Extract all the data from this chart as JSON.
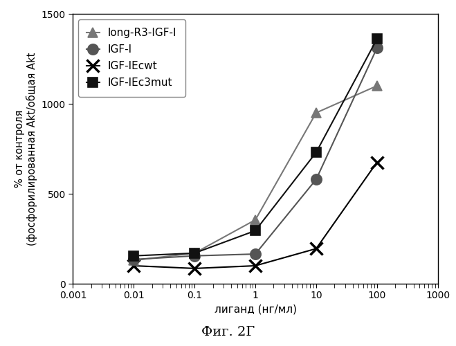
{
  "series": [
    {
      "label": "long-R3-IGF-I",
      "x": [
        0.01,
        0.1,
        1,
        10,
        100
      ],
      "y": [
        130,
        170,
        355,
        950,
        1100
      ],
      "marker": "^",
      "color": "#777777",
      "linestyle": "-",
      "markersize": 10,
      "zorder": 3,
      "markerfacecolor": "#777777"
    },
    {
      "label": "IGF-I",
      "x": [
        0.01,
        0.1,
        1,
        10,
        100
      ],
      "y": [
        135,
        155,
        165,
        580,
        1310
      ],
      "marker": "o",
      "color": "#555555",
      "linestyle": "-",
      "markersize": 11,
      "zorder": 4,
      "markerfacecolor": "#555555"
    },
    {
      "label": "IGF-IEcwt",
      "x": [
        0.01,
        0.1,
        1,
        10,
        100
      ],
      "y": [
        100,
        85,
        100,
        195,
        675
      ],
      "marker": "x",
      "color": "#000000",
      "linestyle": "-",
      "markersize": 13,
      "zorder": 2,
      "markerfacecolor": "#000000"
    },
    {
      "label": "IGF-IEc3mut",
      "x": [
        0.01,
        0.1,
        1,
        10,
        100
      ],
      "y": [
        155,
        170,
        295,
        730,
        1360
      ],
      "marker": "s",
      "color": "#111111",
      "linestyle": "-",
      "markersize": 10,
      "zorder": 5,
      "markerfacecolor": "#111111"
    }
  ],
  "xlabel": "лиганд (нг/мл)",
  "ylabel_line1": "% от контроля",
  "ylabel_line2": "(фосфорилированная Akt/общая Akt",
  "caption": "Фиг. 2Г",
  "xlim": [
    0.001,
    1000
  ],
  "ylim": [
    0,
    1500
  ],
  "yticks": [
    0,
    500,
    1000,
    1500
  ],
  "xtick_positions": [
    0.001,
    0.01,
    0.1,
    1,
    10,
    100,
    1000
  ],
  "xtick_labels": [
    "0.001",
    "0.01",
    "0.1",
    "1",
    "10",
    "100",
    "1000"
  ],
  "background_color": "#ffffff",
  "legend_fontsize": 11,
  "axis_fontsize": 11,
  "tick_fontsize": 10,
  "caption_fontsize": 14,
  "linewidth": 1.5
}
